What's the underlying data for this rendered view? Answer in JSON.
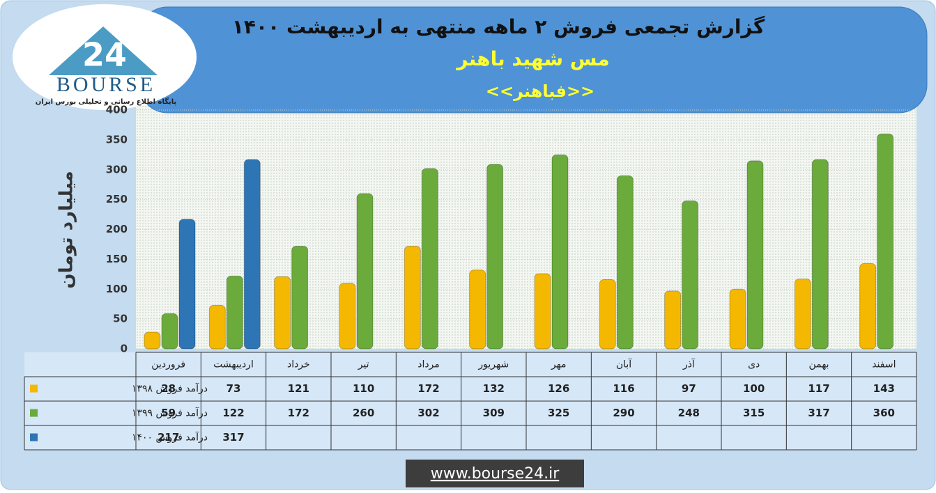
{
  "header": {
    "title": "گزارش تجمعی فروش ۲ ماهه منتهی به اردیبهشت ۱۴۰۰",
    "company": "مس شهید باهنر",
    "symbol": "<<فباهنر>>"
  },
  "logo": {
    "number": "24",
    "name": "BOURSE",
    "tagline": "پایگاه اطلاع رسانی و تحلیلی بورس ایران"
  },
  "footer": {
    "url": "www.bourse24.ir"
  },
  "chart_data": {
    "type": "bar",
    "y_label": "میلیارد تومان",
    "categories": [
      "فروردین",
      "اردیبهشت",
      "خرداد",
      "تیر",
      "مرداد",
      "شهریور",
      "مهر",
      "آبان",
      "آذر",
      "دی",
      "بهمن",
      "اسفند"
    ],
    "series": [
      {
        "name": "درآمد فروش ۱۳۹۸",
        "color": "#f5b800",
        "values": [
          28,
          73,
          121,
          110,
          172,
          132,
          126,
          116,
          97,
          100,
          117,
          143
        ]
      },
      {
        "name": "درآمد فروش ۱۳۹۹",
        "color": "#6aab3b",
        "values": [
          59,
          122,
          172,
          260,
          302,
          309,
          325,
          290,
          248,
          315,
          317,
          360
        ]
      },
      {
        "name": "درآمد فروش ۱۴۰۰",
        "color": "#2e75b6",
        "values": [
          217,
          317,
          null,
          null,
          null,
          null,
          null,
          null,
          null,
          null,
          null,
          null
        ]
      }
    ],
    "ylim": [
      0,
      400
    ],
    "yticks": [
      0,
      50,
      100,
      150,
      200,
      250,
      300,
      350,
      400
    ],
    "grid": true
  }
}
